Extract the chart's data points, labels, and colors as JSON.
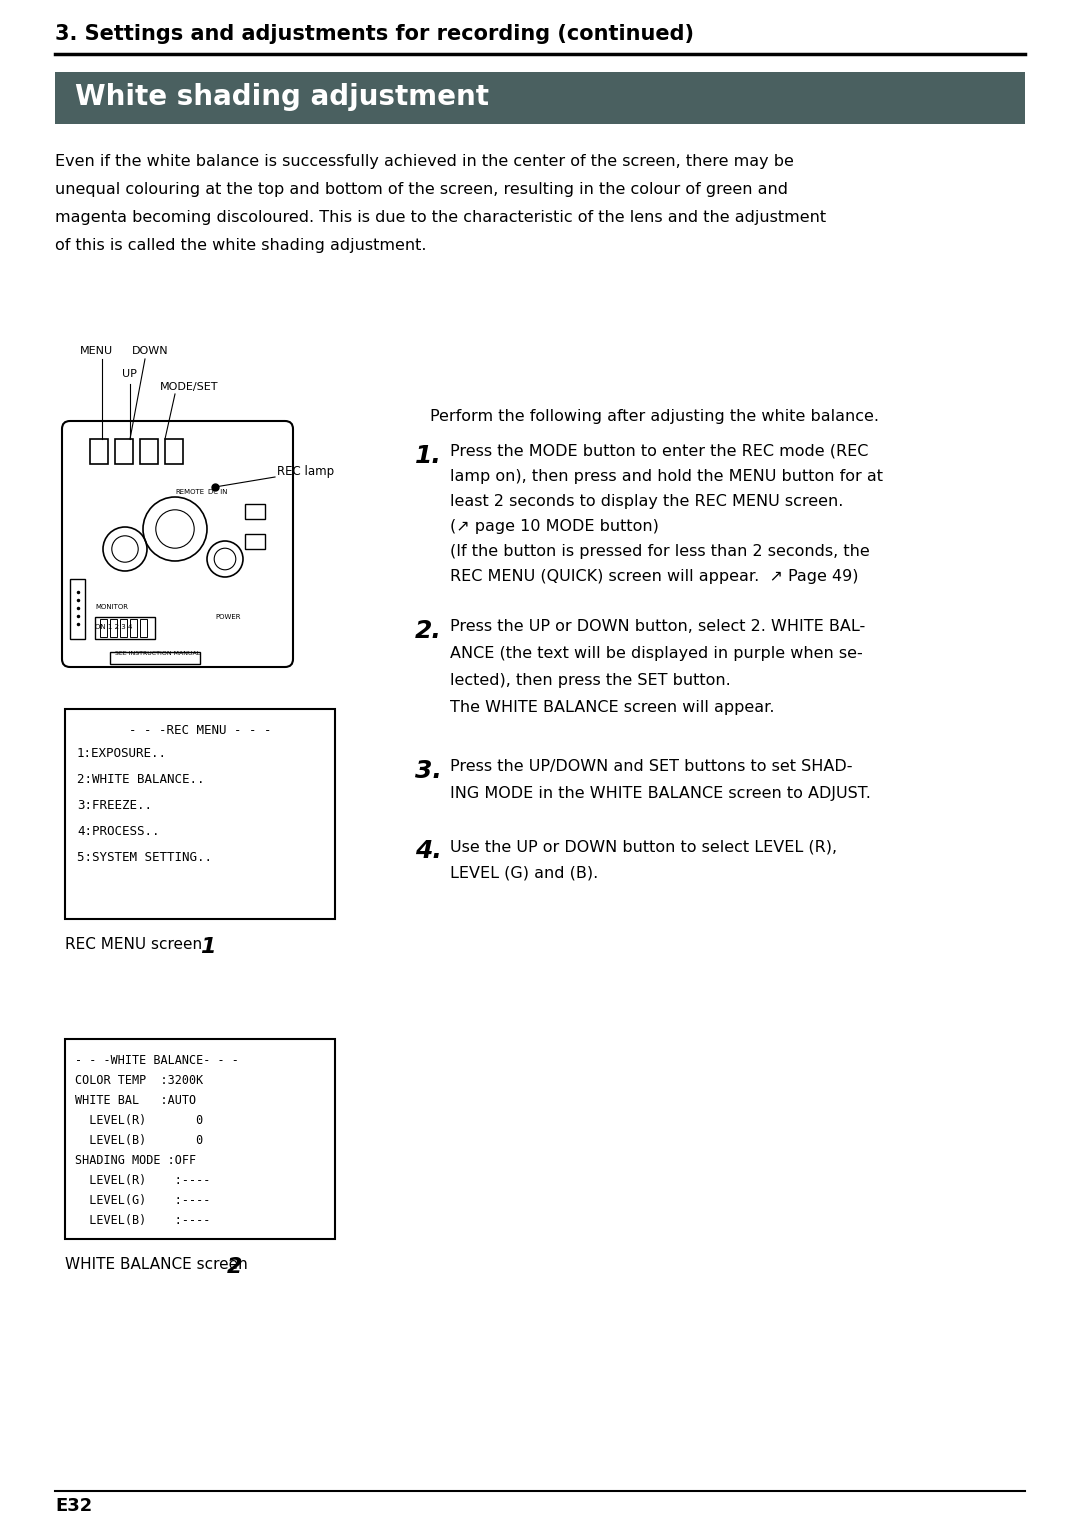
{
  "page_bg": "#ffffff",
  "header_title": "3. Settings and adjustments for recording (continued)",
  "header_title_fontsize": 15,
  "section_bg": "#4a6060",
  "section_title": "White shading adjustment",
  "section_title_color": "#ffffff",
  "section_title_fontsize": 20,
  "intro_text": "Even if the white balance is successfully achieved in the center of the screen, there may be\nunequal colouring at the top and bottom of the screen, resulting in the colour of green and\nmagenta becoming discoloured. This is due to the characteristic of the lens and the adjustment\nof this is called the white shading adjustment.",
  "perform_text": "Perform the following after adjusting the white balance.",
  "step1_num": "1.",
  "step1_text": "Press the MODE button to enter the REC mode (REC\nlamp on), then press and hold the MENU button for at\nleast 2 seconds to display the REC MENU screen.\n(↗ page 10 MODE button)\n(If the button is pressed for less than 2 seconds, the\nREC MENU (QUICK) screen will appear.  ↗ Page 49)",
  "step2_num": "2.",
  "step2_text": "Press the UP or DOWN button, select 2. WHITE BAL-\nANCE (the text will be displayed in purple when se-\nlected), then press the SET button.\nThe WHITE BALANCE screen will appear.",
  "step3_num": "3.",
  "step3_text": "Press the UP/DOWN and SET buttons to set SHAD-\nING MODE in the WHITE BALANCE screen to ADJUST.",
  "step4_num": "4.",
  "step4_text": "Use the UP or DOWN button to select LEVEL (R),\nLEVEL (G) and (B).",
  "rec_menu_title": "- - -REC MENU - - -",
  "rec_menu_items": [
    "1:EXPOSURE..",
    "2:WHITE BALANCE..",
    "3:FREEZE..",
    "4:PROCESS..",
    "5:SYSTEM SETTING.."
  ],
  "rec_menu_caption": "REC MENU screen ",
  "rec_menu_caption_num": "1",
  "wb_screen_lines": [
    "- - -WHITE BALANCE- - -",
    "COLOR TEMP  :3200K",
    "WHITE BAL   :AUTO",
    "  LEVEL(R)       0",
    "  LEVEL(B)       0",
    "SHADING MODE :OFF",
    "  LEVEL(R)    :----",
    "  LEVEL(G)    :----",
    "  LEVEL(B)    :----"
  ],
  "wb_caption": "WHITE BALANCE screen ",
  "wb_caption_num": "2",
  "footer_text": "E32",
  "text_color": "#000000",
  "mono_font": "monospace"
}
